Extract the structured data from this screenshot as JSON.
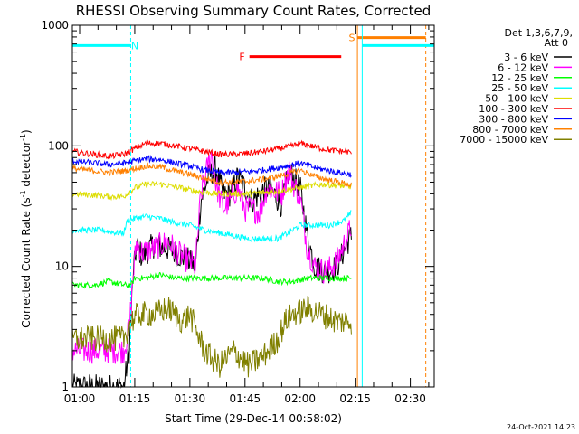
{
  "chart_data": {
    "type": "line",
    "title": "RHESSI Observing Summary Count Rates, Corrected",
    "xlabel": "Start Time (29-Dec-14 00:58:02)",
    "ylabel_main": "Corrected Count Rate (s",
    "ylabel_sup1": "-1",
    "ylabel_mid": " detector",
    "ylabel_sup2": "-1",
    "ylabel_end": ")",
    "yscale": "log",
    "ylim": [
      1,
      1000
    ],
    "xlim_minutes": [
      58.03,
      156.5
    ],
    "x_ticks": [
      {
        "m": 60,
        "label": "01:00"
      },
      {
        "m": 75,
        "label": "01:15"
      },
      {
        "m": 90,
        "label": "01:30"
      },
      {
        "m": 105,
        "label": "01:45"
      },
      {
        "m": 120,
        "label": "02:00"
      },
      {
        "m": 135,
        "label": "02:15"
      },
      {
        "m": 150,
        "label": "02:30"
      }
    ],
    "x_minor_every": 5,
    "y_ticks": [
      {
        "v": 1,
        "label": "1"
      },
      {
        "v": 10,
        "label": "10"
      },
      {
        "v": 100,
        "label": "100"
      },
      {
        "v": 1000,
        "label": "1000"
      }
    ],
    "legend_header": [
      "Det 1,3,6,7,9,",
      "Att 0"
    ],
    "series": [
      {
        "name": "3 - 6 keV",
        "color": "#000000",
        "points": [
          [
            58,
            1
          ],
          [
            72,
            1
          ],
          [
            73.5,
            2
          ],
          [
            74.5,
            8
          ],
          [
            75.5,
            15
          ],
          [
            77,
            12
          ],
          [
            80,
            15
          ],
          [
            84,
            14
          ],
          [
            88,
            12
          ],
          [
            90,
            11
          ],
          [
            91.5,
            10
          ],
          [
            93,
            35
          ],
          [
            95,
            55
          ],
          [
            97,
            65
          ],
          [
            99,
            40
          ],
          [
            101,
            40
          ],
          [
            103,
            55
          ],
          [
            105,
            45
          ],
          [
            107,
            35
          ],
          [
            109,
            40
          ],
          [
            111,
            45
          ],
          [
            113,
            40
          ],
          [
            115,
            32
          ],
          [
            117,
            60
          ],
          [
            118,
            55
          ],
          [
            120,
            45
          ],
          [
            122,
            18
          ],
          [
            124,
            10
          ],
          [
            127,
            9
          ],
          [
            130,
            10
          ],
          [
            133,
            16
          ],
          [
            134,
            18
          ]
        ]
      },
      {
        "name": "6 - 12 keV",
        "color": "#ff00ff",
        "points": [
          [
            58,
            2
          ],
          [
            72,
            2
          ],
          [
            73.5,
            3
          ],
          [
            74.5,
            8
          ],
          [
            75.5,
            16
          ],
          [
            77,
            13
          ],
          [
            80,
            14
          ],
          [
            84,
            16
          ],
          [
            88,
            12
          ],
          [
            90,
            11
          ],
          [
            91.5,
            10
          ],
          [
            93,
            40
          ],
          [
            95,
            70
          ],
          [
            96,
            85
          ],
          [
            97,
            50
          ],
          [
            99,
            30
          ],
          [
            101,
            35
          ],
          [
            103,
            45
          ],
          [
            105,
            30
          ],
          [
            107,
            30
          ],
          [
            109,
            28
          ],
          [
            111,
            45
          ],
          [
            113,
            42
          ],
          [
            115,
            40
          ],
          [
            117,
            65
          ],
          [
            118,
            50
          ],
          [
            120,
            38
          ],
          [
            122,
            14
          ],
          [
            124,
            10
          ],
          [
            127,
            9
          ],
          [
            130,
            11
          ],
          [
            133,
            18
          ],
          [
            134,
            22
          ]
        ]
      },
      {
        "name": "12 - 25 keV",
        "color": "#00ff00",
        "points": [
          [
            58,
            7
          ],
          [
            64,
            7
          ],
          [
            68,
            7.5
          ],
          [
            72,
            7
          ],
          [
            74,
            7
          ],
          [
            75,
            8
          ],
          [
            78,
            8
          ],
          [
            82,
            8.5
          ],
          [
            86,
            8
          ],
          [
            90,
            8
          ],
          [
            94,
            8
          ],
          [
            98,
            8
          ],
          [
            102,
            8
          ],
          [
            106,
            8
          ],
          [
            110,
            8
          ],
          [
            114,
            7.5
          ],
          [
            118,
            7.5
          ],
          [
            122,
            8
          ],
          [
            126,
            8
          ],
          [
            130,
            8
          ],
          [
            134,
            8
          ]
        ]
      },
      {
        "name": "25 - 50 keV",
        "color": "#00ffff",
        "points": [
          [
            58,
            20
          ],
          [
            66,
            20
          ],
          [
            70,
            19
          ],
          [
            72,
            19
          ],
          [
            73,
            24
          ],
          [
            75,
            25
          ],
          [
            78,
            26
          ],
          [
            82,
            25
          ],
          [
            86,
            23
          ],
          [
            90,
            22
          ],
          [
            94,
            20
          ],
          [
            98,
            19
          ],
          [
            102,
            18
          ],
          [
            106,
            17
          ],
          [
            110,
            17
          ],
          [
            114,
            17
          ],
          [
            118,
            20
          ],
          [
            120,
            22
          ],
          [
            124,
            22
          ],
          [
            128,
            22
          ],
          [
            132,
            24
          ],
          [
            134,
            28
          ]
        ]
      },
      {
        "name": "50 - 100 keV",
        "color": "#dddd00",
        "points": [
          [
            58,
            40
          ],
          [
            64,
            39
          ],
          [
            68,
            38
          ],
          [
            72,
            38
          ],
          [
            75,
            45
          ],
          [
            78,
            48
          ],
          [
            82,
            48
          ],
          [
            86,
            46
          ],
          [
            90,
            43
          ],
          [
            94,
            41
          ],
          [
            98,
            40
          ],
          [
            102,
            40
          ],
          [
            106,
            40
          ],
          [
            110,
            41
          ],
          [
            114,
            42
          ],
          [
            118,
            44
          ],
          [
            122,
            46
          ],
          [
            126,
            48
          ],
          [
            130,
            47
          ],
          [
            134,
            46
          ]
        ]
      },
      {
        "name": "100 - 300 keV",
        "color": "#ff0000",
        "points": [
          [
            58,
            90
          ],
          [
            64,
            85
          ],
          [
            68,
            82
          ],
          [
            72,
            85
          ],
          [
            75,
            95
          ],
          [
            78,
            105
          ],
          [
            82,
            105
          ],
          [
            86,
            100
          ],
          [
            90,
            95
          ],
          [
            94,
            90
          ],
          [
            98,
            85
          ],
          [
            102,
            85
          ],
          [
            106,
            87
          ],
          [
            110,
            90
          ],
          [
            114,
            95
          ],
          [
            118,
            100
          ],
          [
            120,
            105
          ],
          [
            124,
            98
          ],
          [
            128,
            92
          ],
          [
            132,
            90
          ],
          [
            134,
            88
          ]
        ]
      },
      {
        "name": "300 - 800 keV",
        "color": "#0000ff",
        "points": [
          [
            58,
            75
          ],
          [
            64,
            72
          ],
          [
            68,
            70
          ],
          [
            72,
            72
          ],
          [
            75,
            75
          ],
          [
            78,
            78
          ],
          [
            82,
            77
          ],
          [
            86,
            72
          ],
          [
            90,
            68
          ],
          [
            94,
            63
          ],
          [
            98,
            60
          ],
          [
            102,
            60
          ],
          [
            106,
            61
          ],
          [
            110,
            63
          ],
          [
            114,
            66
          ],
          [
            118,
            70
          ],
          [
            120,
            72
          ],
          [
            124,
            66
          ],
          [
            128,
            62
          ],
          [
            132,
            59
          ],
          [
            134,
            58
          ]
        ]
      },
      {
        "name": "800 - 7000 keV",
        "color": "#ff8000",
        "points": [
          [
            58,
            65
          ],
          [
            64,
            62
          ],
          [
            68,
            60
          ],
          [
            72,
            62
          ],
          [
            75,
            65
          ],
          [
            78,
            68
          ],
          [
            82,
            67
          ],
          [
            86,
            62
          ],
          [
            90,
            58
          ],
          [
            94,
            54
          ],
          [
            98,
            50
          ],
          [
            102,
            50
          ],
          [
            106,
            51
          ],
          [
            110,
            53
          ],
          [
            114,
            56
          ],
          [
            118,
            60
          ],
          [
            120,
            63
          ],
          [
            124,
            56
          ],
          [
            128,
            52
          ],
          [
            132,
            49
          ],
          [
            134,
            47
          ]
        ]
      },
      {
        "name": "7000 - 15000 keV",
        "color": "#808000",
        "points": [
          [
            58,
            2.5
          ],
          [
            72,
            2.5
          ],
          [
            74,
            3.5
          ],
          [
            76,
            4
          ],
          [
            80,
            4
          ],
          [
            84,
            4.5
          ],
          [
            88,
            3.5
          ],
          [
            90,
            4
          ],
          [
            94,
            2
          ],
          [
            98,
            1.5
          ],
          [
            102,
            2
          ],
          [
            106,
            1.5
          ],
          [
            110,
            1.8
          ],
          [
            114,
            2.5
          ],
          [
            116,
            3.5
          ],
          [
            118,
            4
          ],
          [
            122,
            4.5
          ],
          [
            126,
            4
          ],
          [
            130,
            3.5
          ],
          [
            134,
            3.5
          ]
        ]
      }
    ],
    "segments": [
      {
        "name": "N",
        "label": "N",
        "color": "#00ffff",
        "y": 680,
        "start": 58.03,
        "end": 73.9,
        "end_style": "dashed",
        "label_at": 75.0
      },
      {
        "name": "F",
        "label": "F",
        "color": "#ff0000",
        "y": 550,
        "start": 106.2,
        "end": 131.2,
        "label_at": 104.2
      },
      {
        "name": "S",
        "label": "S",
        "color": "#ff8000",
        "y": 790,
        "start": 135.6,
        "end": 154.2,
        "start_style": "solid",
        "end_style": "dashed",
        "label_at": 134.1
      },
      {
        "name": "N2",
        "label": "",
        "color": "#00ffff",
        "y": 680,
        "start": 136.9,
        "end": 156.5,
        "start_style": "solid",
        "end_style": "dashed"
      }
    ],
    "grid": false,
    "legend_position": "outside-right"
  },
  "footer": {
    "timestamp": "24-Oct-2021 14:23"
  }
}
